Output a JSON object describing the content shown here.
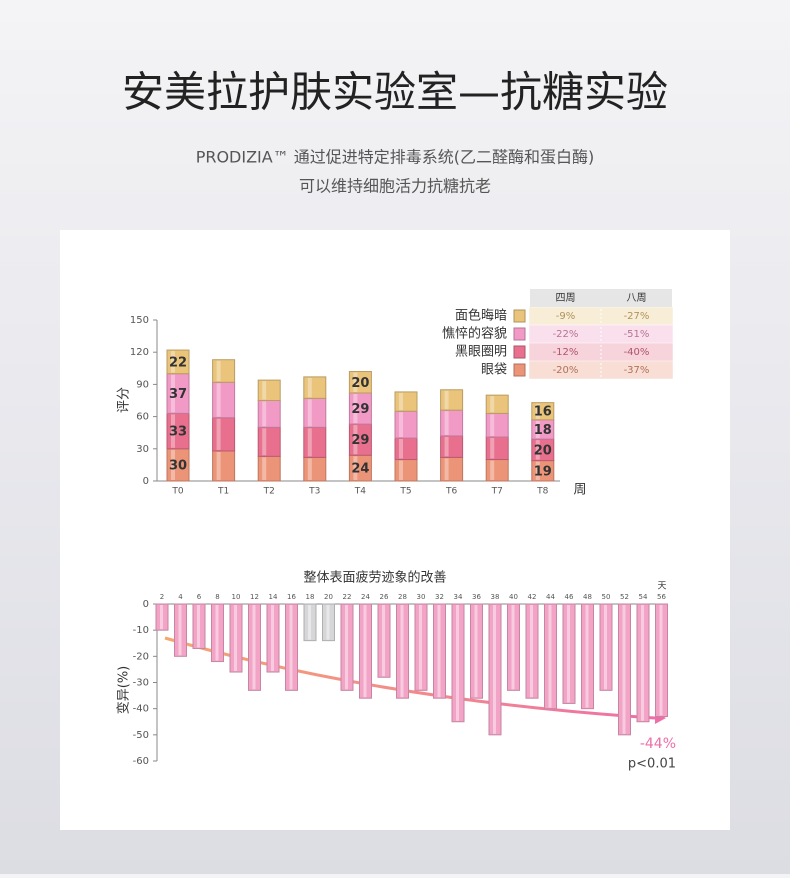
{
  "header": {
    "title": "安美拉护肤实验室—抗糖实验",
    "subtitle": [
      "PRODIZIA™ 通过促进特定排毒系统(乙二醛酶和蛋白酶)",
      "可以维持细胞活力抗糖抗老"
    ]
  },
  "chart_data": [
    {
      "type": "stacked_bar",
      "y_label": "评分",
      "x_label": "周",
      "categories": [
        "T0",
        "T1",
        "T2",
        "T3",
        "T4",
        "T5",
        "T6",
        "T7",
        "T8"
      ],
      "ylim": [
        0,
        150
      ],
      "yticks": [
        0,
        30,
        60,
        90,
        120,
        150
      ],
      "series": [
        {
          "name": "面色晦暗",
          "color": "#e9c47a",
          "values": [
            22,
            21,
            19,
            20,
            20,
            18,
            19,
            17,
            16
          ],
          "value_labels": [
            "22",
            null,
            null,
            null,
            "20",
            null,
            null,
            null,
            "16"
          ]
        },
        {
          "name": "憔悴的容貌",
          "color": "#f19ac6",
          "values": [
            37,
            33,
            25,
            27,
            29,
            25,
            24,
            22,
            18
          ],
          "value_labels": [
            "37",
            null,
            null,
            null,
            "29",
            null,
            null,
            null,
            "18"
          ]
        },
        {
          "name": "黑眼圈明",
          "color": "#e8708e",
          "values": [
            33,
            31,
            27,
            28,
            29,
            20,
            20,
            21,
            20
          ],
          "value_labels": [
            "33",
            null,
            null,
            null,
            "29",
            null,
            null,
            null,
            "20"
          ]
        },
        {
          "name": "眼袋",
          "color": "#ec9478",
          "values": [
            30,
            28,
            23,
            22,
            24,
            20,
            22,
            20,
            19
          ],
          "value_labels": [
            "30",
            null,
            null,
            null,
            "24",
            null,
            null,
            null,
            "19"
          ]
        }
      ],
      "table": {
        "headers": [
          "四周",
          "八周"
        ],
        "rows": [
          [
            "-9%",
            "-27%"
          ],
          [
            "-22%",
            "-51%"
          ],
          [
            "-12%",
            "-40%"
          ],
          [
            "-20%",
            "-37%"
          ]
        ]
      }
    },
    {
      "type": "bar",
      "title": "整体表面疲劳迹象的改善",
      "y_label": "变异(%)",
      "x_label": "天",
      "categories": [
        "2",
        "4",
        "6",
        "8",
        "10",
        "12",
        "14",
        "16",
        "18",
        "20",
        "22",
        "24",
        "26",
        "28",
        "30",
        "32",
        "34",
        "36",
        "38",
        "40",
        "42",
        "44",
        "46",
        "48",
        "50",
        "52",
        "54",
        "56"
      ],
      "values": [
        -10,
        -20,
        -17,
        -22,
        -26,
        -33,
        -26,
        -33,
        -14,
        -14,
        -33,
        -36,
        -28,
        -36,
        -33,
        -36,
        -45,
        -36,
        -50,
        -33,
        -36,
        -40,
        -38,
        -40,
        -33,
        -50,
        -45,
        -43
      ],
      "colors": [
        "#f2a3c6",
        "#f2a3c6",
        "#f2a3c6",
        "#f2a3c6",
        "#f2a3c6",
        "#f2a3c6",
        "#f2a3c6",
        "#f2a3c6",
        "#d6d6d8",
        "#d6d6d8",
        "#f2a3c6",
        "#f2a3c6",
        "#f2a3c6",
        "#f2a3c6",
        "#f2a3c6",
        "#f2a3c6",
        "#f2a3c6",
        "#f2a3c6",
        "#f2a3c6",
        "#f2a3c6",
        "#f2a3c6",
        "#f2a3c6",
        "#f2a3c6",
        "#f2a3c6",
        "#f2a3c6",
        "#f2a3c6",
        "#f2a3c6",
        "#f2a3c6"
      ],
      "ylim": [
        -60,
        0
      ],
      "yticks": [
        0,
        -10,
        -20,
        -30,
        -40,
        -50,
        -60
      ],
      "annotations": [
        "-44%",
        "p<0.01"
      ]
    }
  ]
}
